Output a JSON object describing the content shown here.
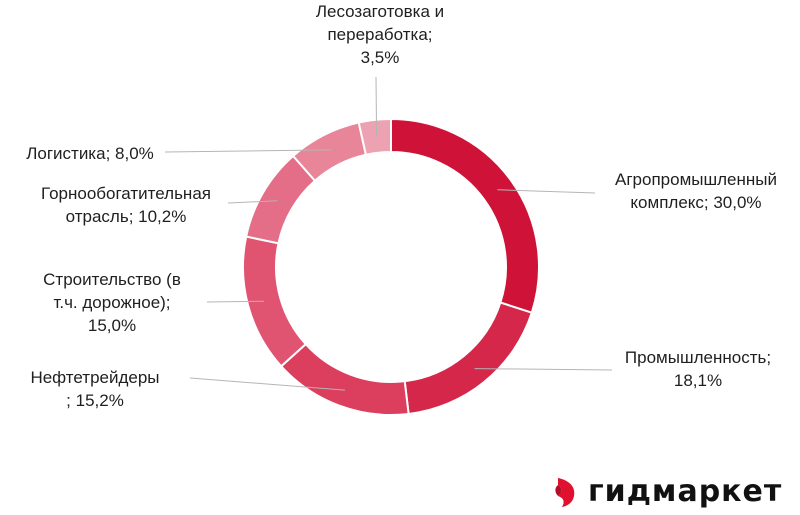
{
  "chart_data": {
    "type": "pie",
    "subtype": "donut",
    "title": "",
    "categories": [
      "Агропромышленный комплекс",
      "Промышленность",
      "Нефтетрейдеры",
      "Строительство (в т.ч. дорожное)",
      "Горнообогатительная отрасль",
      "Логистика",
      "Лесозаготовка и переработка"
    ],
    "values": [
      30.0,
      18.1,
      15.2,
      15.0,
      10.2,
      8.0,
      3.5
    ],
    "unit": "%",
    "colors": [
      "#cf1237",
      "#d42749",
      "#dc3f5e",
      "#e05472",
      "#e46d87",
      "#e88599",
      "#eca2b1"
    ],
    "start_angle": "12 o'clock",
    "direction": "clockwise",
    "legend": "none (leader-line data labels)",
    "labels": [
      {
        "lines": [
          "Агропромышленный",
          "комплекс; 30,0%"
        ]
      },
      {
        "lines": [
          "Промышленность;",
          "18,1%"
        ]
      },
      {
        "lines": [
          "Нефтетрейдеры",
          "; 15,2%"
        ]
      },
      {
        "lines": [
          "Строительство (в",
          "т.ч. дорожное);",
          "15,0%"
        ]
      },
      {
        "lines": [
          "Горнообогатительная",
          "отрасль; 10,2%"
        ]
      },
      {
        "lines": [
          "Логистика; 8,0%"
        ]
      },
      {
        "lines": [
          "Лесозаготовка и",
          "переработка;",
          "3,5%"
        ]
      }
    ]
  },
  "brand": {
    "name": "гидмаркет",
    "logo_icon": "red-flag-mark-icon",
    "accent_color": "#e0102f"
  }
}
